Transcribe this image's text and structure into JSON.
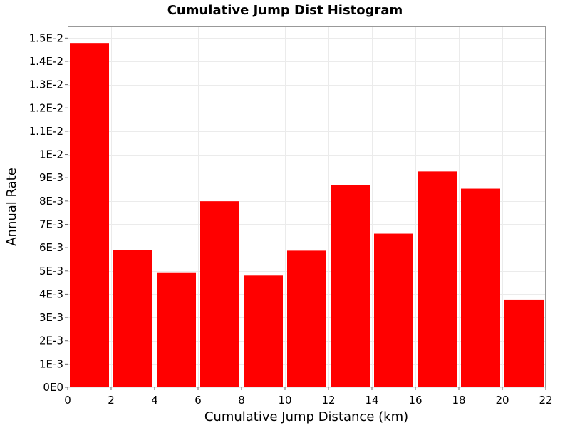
{
  "chart_data": {
    "type": "bar",
    "title": "Cumulative Jump Dist Histogram",
    "xlabel": "Cumulative Jump Distance (km)",
    "ylabel": "Annual Rate",
    "xlim": [
      0,
      22
    ],
    "ylim": [
      0,
      0.0155
    ],
    "x_ticks": [
      0,
      2,
      4,
      6,
      8,
      10,
      12,
      14,
      16,
      18,
      20,
      22
    ],
    "x_tick_labels": [
      "0",
      "2",
      "4",
      "6",
      "8",
      "10",
      "12",
      "14",
      "16",
      "18",
      "20",
      "22"
    ],
    "y_ticks": [
      0,
      0.001,
      0.002,
      0.003,
      0.004,
      0.005,
      0.006,
      0.007,
      0.008,
      0.009,
      0.01,
      0.011,
      0.012,
      0.013,
      0.014,
      0.015
    ],
    "y_tick_labels": [
      "0E0",
      "1E-3",
      "2E-3",
      "3E-3",
      "4E-3",
      "5E-3",
      "6E-3",
      "7E-3",
      "8E-3",
      "9E-3",
      "1E-2",
      "1.1E-2",
      "1.2E-2",
      "1.3E-2",
      "1.4E-2",
      "1.5E-2"
    ],
    "bin_width": 2,
    "bins": [
      {
        "x_start": 0,
        "value": 0.01479
      },
      {
        "x_start": 2,
        "value": 0.00591
      },
      {
        "x_start": 4,
        "value": 0.00491
      },
      {
        "x_start": 6,
        "value": 0.00799
      },
      {
        "x_start": 8,
        "value": 0.0048
      },
      {
        "x_start": 10,
        "value": 0.00587
      },
      {
        "x_start": 12,
        "value": 0.00868
      },
      {
        "x_start": 14,
        "value": 0.0066
      },
      {
        "x_start": 16,
        "value": 0.00927
      },
      {
        "x_start": 18,
        "value": 0.00853
      },
      {
        "x_start": 20,
        "value": 0.00377
      }
    ],
    "bar_color": "#ff0000",
    "grid": true,
    "legend": false
  }
}
